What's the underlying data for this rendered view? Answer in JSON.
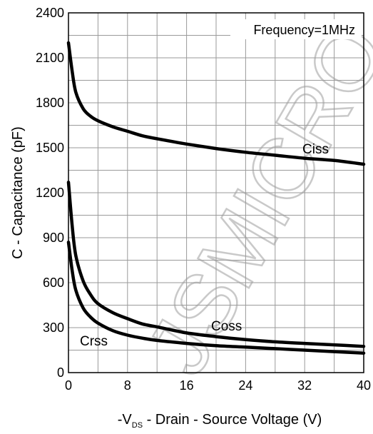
{
  "chart_data": {
    "type": "line",
    "annotation": "Frequency=1MHz",
    "xlabel": {
      "prefix": "-V",
      "subscript": "DS",
      "suffix": " - Drain - Source Voltage (V)"
    },
    "ylabel": "C - Capacitance (pF)",
    "xlim": [
      0,
      40
    ],
    "ylim": [
      0,
      2400
    ],
    "x_ticks": [
      0,
      8,
      16,
      24,
      32,
      40
    ],
    "y_ticks": [
      0,
      300,
      600,
      900,
      1200,
      1500,
      1800,
      2100,
      2400
    ],
    "grid": true,
    "series": [
      {
        "name": "Ciss",
        "x": [
          0,
          0.5,
          1,
          2,
          3,
          4,
          6,
          8,
          10,
          12,
          16,
          20,
          24,
          28,
          32,
          36,
          40
        ],
        "y": [
          2200,
          2010,
          1870,
          1760,
          1710,
          1680,
          1640,
          1610,
          1580,
          1560,
          1525,
          1495,
          1470,
          1450,
          1430,
          1415,
          1390
        ]
      },
      {
        "name": "Coss",
        "x": [
          0,
          0.5,
          1,
          2,
          3,
          4,
          6,
          8,
          10,
          12,
          16,
          20,
          24,
          28,
          32,
          36,
          40
        ],
        "y": [
          1270,
          980,
          780,
          610,
          520,
          460,
          400,
          360,
          325,
          305,
          265,
          240,
          220,
          205,
          195,
          185,
          175
        ]
      },
      {
        "name": "Crss",
        "x": [
          0,
          0.5,
          1,
          2,
          3,
          4,
          6,
          8,
          10,
          12,
          16,
          20,
          24,
          28,
          32,
          36,
          40
        ],
        "y": [
          870,
          680,
          550,
          430,
          370,
          330,
          280,
          250,
          230,
          215,
          195,
          180,
          170,
          160,
          150,
          140,
          130
        ]
      }
    ],
    "watermark": "JSMICRO"
  }
}
